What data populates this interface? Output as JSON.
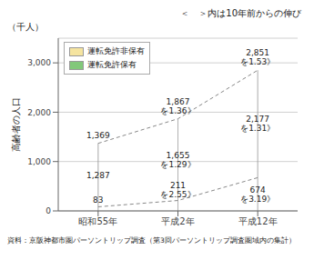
{
  "chart_data": {
    "type": "bar",
    "stacked": true,
    "categories": [
      "昭和55年",
      "平成2年",
      "平成12年"
    ],
    "series": [
      {
        "name": "運転免許保有",
        "color": "#82c87a",
        "values": [
          83,
          211,
          674
        ],
        "value_labels": [
          "83",
          "211\nを2.55》",
          "674\nを3.19》"
        ]
      },
      {
        "name": "運転免許非保有",
        "color": "#f5e4a0",
        "values": [
          1287,
          1655,
          2177
        ],
        "value_labels": [
          "1,287",
          "1,655\nを1.29》",
          "2,177\nを1.31》"
        ]
      }
    ],
    "totals": {
      "values": [
        1369,
        1867,
        2851
      ],
      "value_labels": [
        "1,369",
        "1,867\nを1.36》",
        "2,851\nを1.53》"
      ]
    },
    "connector_line": {
      "line_style": "dashed",
      "color": "#888888"
    },
    "bar_border_color": "#999999",
    "ylim": [
      0,
      3500
    ],
    "yticks": [
      0,
      {
        "value": 1000,
        "label": "1,000"
      },
      {
        "value": 2000,
        "label": "2,000"
      },
      {
        "value": 3000,
        "label": "3,000"
      }
    ],
    "ylabel": "高齢者の人口",
    "y_units": "（千人）",
    "note": "＜　＞内は10年前からの伸び",
    "source": "資料：京阪神都市圏パーソントリップ調査（第3回パーソントリップ調査圏域内の集計）",
    "grid": true,
    "legend": "upper left",
    "data_labels": true
  }
}
